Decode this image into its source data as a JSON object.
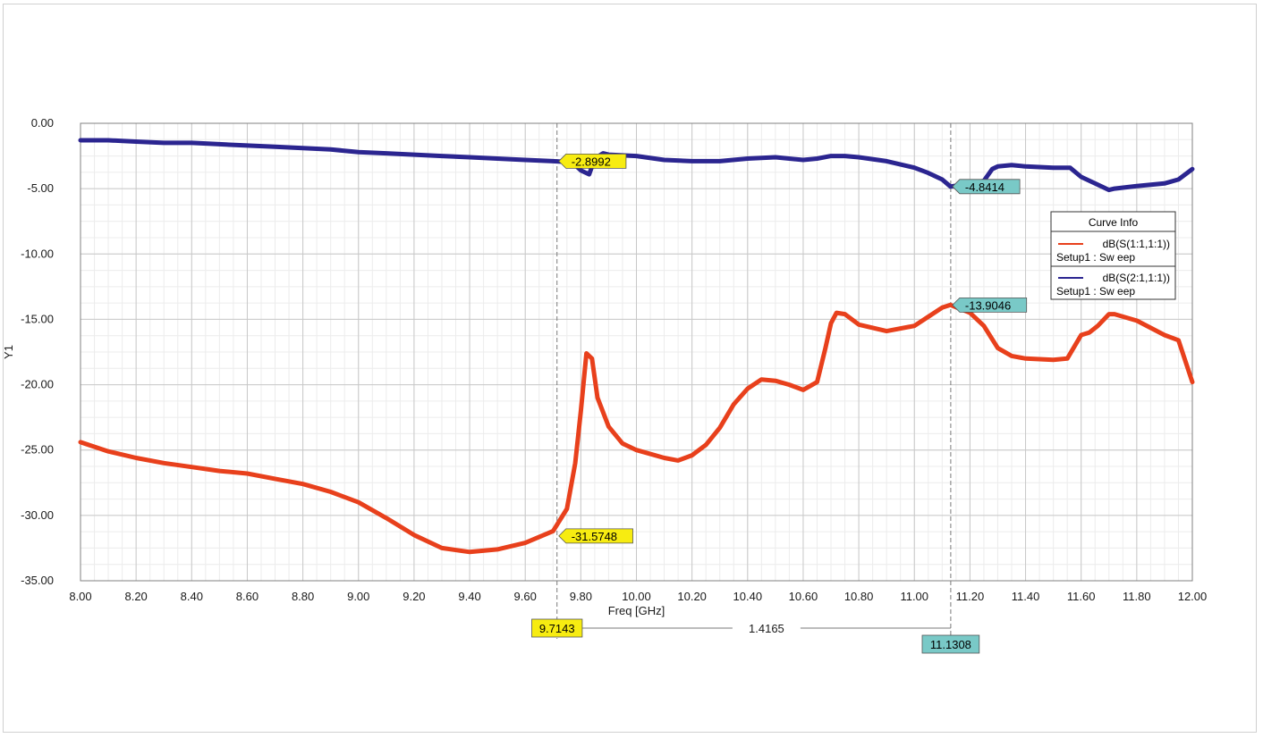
{
  "chart_data": {
    "type": "line",
    "title": "",
    "xlabel": "Freq [GHz]",
    "ylabel": "Y1",
    "xlim": [
      8.0,
      12.0
    ],
    "ylim": [
      -35.0,
      0.0
    ],
    "x_ticks": [
      "8.00",
      "8.20",
      "8.40",
      "8.60",
      "8.80",
      "9.00",
      "9.20",
      "9.40",
      "9.60",
      "9.80",
      "10.00",
      "10.20",
      "10.40",
      "10.60",
      "10.80",
      "11.00",
      "11.20",
      "11.40",
      "11.60",
      "11.80",
      "12.00"
    ],
    "y_ticks": [
      "0.00",
      "-5.00",
      "-10.00",
      "-15.00",
      "-20.00",
      "-25.00",
      "-30.00",
      "-35.00"
    ],
    "grid": true,
    "legend": {
      "title": "Curve Info",
      "placement": "right",
      "entries": [
        {
          "label": "dB(S(1:1,1:1))",
          "sub": "Setup1 : Sw eep",
          "color": "#e8401c"
        },
        {
          "label": "dB(S(2:1,1:1))",
          "sub": "Setup1 : Sw eep",
          "color": "#2b2590"
        }
      ]
    },
    "series": [
      {
        "color": "#e8401c",
        "x": [
          8.0,
          8.1,
          8.2,
          8.3,
          8.4,
          8.5,
          8.6,
          8.7,
          8.8,
          8.9,
          9.0,
          9.1,
          9.2,
          9.3,
          9.4,
          9.5,
          9.6,
          9.7,
          9.75,
          9.78,
          9.8,
          9.82,
          9.84,
          9.86,
          9.9,
          9.95,
          10.0,
          10.1,
          10.15,
          10.2,
          10.25,
          10.3,
          10.35,
          10.4,
          10.45,
          10.5,
          10.55,
          10.6,
          10.65,
          10.68,
          10.7,
          10.72,
          10.75,
          10.8,
          10.9,
          11.0,
          11.05,
          11.1,
          11.13,
          11.2,
          11.25,
          11.3,
          11.35,
          11.4,
          11.5,
          11.55,
          11.6,
          11.63,
          11.66,
          11.7,
          11.72,
          11.8,
          11.9,
          11.95,
          12.0
        ],
        "values": [
          -24.4,
          -25.1,
          -25.6,
          -26.0,
          -26.3,
          -26.6,
          -26.8,
          -27.2,
          -27.6,
          -28.2,
          -29.0,
          -30.2,
          -31.5,
          -32.5,
          -32.8,
          -32.6,
          -32.1,
          -31.2,
          -29.5,
          -26.0,
          -22.0,
          -17.6,
          -18.0,
          -21.0,
          -23.2,
          -24.5,
          -25.0,
          -25.6,
          -25.8,
          -25.4,
          -24.6,
          -23.3,
          -21.5,
          -20.3,
          -19.6,
          -19.7,
          -20.0,
          -20.4,
          -19.8,
          -17.2,
          -15.3,
          -14.5,
          -14.6,
          -15.4,
          -15.9,
          -15.5,
          -14.8,
          -14.1,
          -13.9,
          -14.5,
          -15.5,
          -17.2,
          -17.8,
          -18.0,
          -18.1,
          -18.0,
          -16.2,
          -16.0,
          -15.5,
          -14.6,
          -14.6,
          -15.1,
          -16.2,
          -16.6,
          -19.8
        ]
      },
      {
        "color": "#2b2590",
        "x": [
          8.0,
          8.1,
          8.2,
          8.3,
          8.4,
          8.5,
          8.6,
          8.7,
          8.8,
          8.9,
          9.0,
          9.1,
          9.2,
          9.3,
          9.4,
          9.5,
          9.6,
          9.7,
          9.75,
          9.78,
          9.8,
          9.83,
          9.85,
          9.88,
          9.9,
          10.0,
          10.1,
          10.2,
          10.3,
          10.4,
          10.5,
          10.6,
          10.65,
          10.7,
          10.75,
          10.8,
          10.9,
          11.0,
          11.05,
          11.1,
          11.13,
          11.2,
          11.25,
          11.28,
          11.3,
          11.35,
          11.4,
          11.5,
          11.56,
          11.6,
          11.65,
          11.7,
          11.72,
          11.8,
          11.9,
          11.95,
          12.0
        ],
        "values": [
          -1.3,
          -1.3,
          -1.4,
          -1.5,
          -1.5,
          -1.6,
          -1.7,
          -1.8,
          -1.9,
          -2.0,
          -2.2,
          -2.3,
          -2.4,
          -2.5,
          -2.6,
          -2.7,
          -2.8,
          -2.9,
          -2.95,
          -3.2,
          -3.6,
          -3.9,
          -2.7,
          -2.3,
          -2.4,
          -2.5,
          -2.8,
          -2.9,
          -2.9,
          -2.7,
          -2.6,
          -2.8,
          -2.7,
          -2.5,
          -2.5,
          -2.6,
          -2.9,
          -3.4,
          -3.8,
          -4.3,
          -4.84,
          -4.6,
          -4.4,
          -3.5,
          -3.3,
          -3.2,
          -3.3,
          -3.4,
          -3.4,
          -4.1,
          -4.6,
          -5.1,
          -5.0,
          -4.8,
          -4.6,
          -4.3,
          -3.5
        ]
      }
    ],
    "markers": [
      {
        "label": "-2.8992",
        "x": 9.7143,
        "y": -2.8992,
        "style": "yellow"
      },
      {
        "label": "-31.5748",
        "x": 9.7143,
        "y": -31.5748,
        "style": "yellow"
      },
      {
        "label": "-4.8414",
        "x": 11.1308,
        "y": -4.8414,
        "style": "cyan"
      },
      {
        "label": "-13.9046",
        "x": 11.1308,
        "y": -13.9046,
        "style": "cyan"
      }
    ],
    "x_markers": [
      {
        "label": "9.7143",
        "x": 9.7143,
        "style": "yellow"
      },
      {
        "label": "11.1308",
        "x": 11.1308,
        "style": "cyan"
      }
    ],
    "delta_label": "1.4165",
    "colors": {
      "grid_major": "#c8c8c8",
      "grid_minor": "#ececec",
      "axis": "#808080",
      "marker_yellow": "#f7ec11",
      "marker_cyan": "#79c9c7"
    }
  }
}
